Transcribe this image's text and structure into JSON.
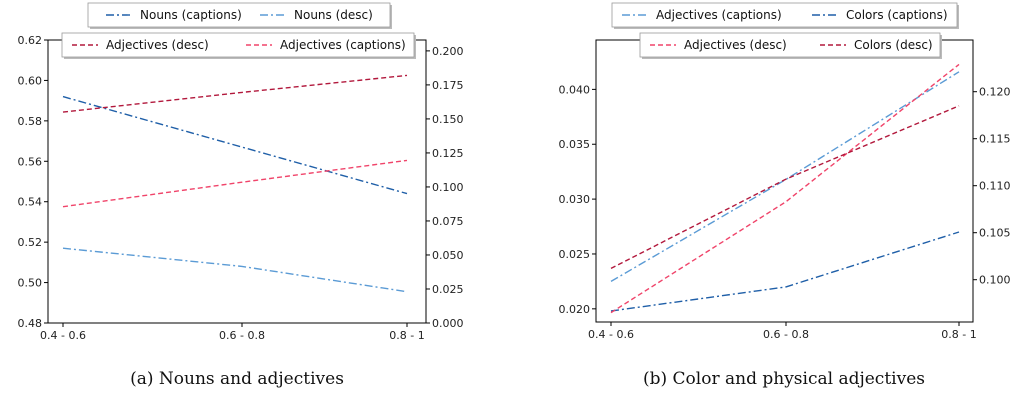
{
  "chart_data": [
    {
      "type": "line",
      "caption": "(a) Nouns and adjectives",
      "categories": [
        "0.4 - 0.6",
        "0.6 - 0.8",
        "0.8 - 1"
      ],
      "left_axis": {
        "ylim": [
          0.48,
          0.62
        ],
        "ticks": [
          0.48,
          0.5,
          0.52,
          0.54,
          0.56,
          0.58,
          0.6,
          0.62
        ],
        "tick_labels": [
          "0.48",
          "0.50",
          "0.52",
          "0.54",
          "0.56",
          "0.58",
          "0.60",
          "0.62"
        ]
      },
      "right_axis": {
        "ylim": [
          0.0,
          0.208
        ],
        "ticks": [
          0.0,
          0.025,
          0.05,
          0.075,
          0.1,
          0.125,
          0.15,
          0.175,
          0.2
        ],
        "tick_labels": [
          "0.000",
          "0.025",
          "0.050",
          "0.075",
          "0.100",
          "0.125",
          "0.150",
          "0.175",
          "0.200"
        ]
      },
      "series": [
        {
          "name": "Nouns (captions)",
          "axis": "left",
          "values": [
            0.592,
            0.567,
            0.544
          ],
          "color": "#1f5fa8",
          "dash": "dashdot"
        },
        {
          "name": "Nouns (desc)",
          "axis": "left",
          "values": [
            0.517,
            0.508,
            0.4955
          ],
          "color": "#5b9bd5",
          "dash": "dashdot"
        },
        {
          "name": "Adjectives (desc)",
          "axis": "right",
          "values": [
            0.155,
            0.1695,
            0.182
          ],
          "color": "#b2183c",
          "dash": "dashed"
        },
        {
          "name": "Adjectives (captions)",
          "axis": "right",
          "values": [
            0.0855,
            0.1035,
            0.1195
          ],
          "color": "#f0446a",
          "dash": "dashed"
        }
      ],
      "legends": [
        {
          "placement": "above",
          "entries": [
            "Nouns (captions)",
            "Nouns (desc)"
          ]
        },
        {
          "placement": "top",
          "entries": [
            "Adjectives (desc)",
            "Adjectives (captions)"
          ]
        }
      ]
    },
    {
      "type": "line",
      "caption": "(b) Color and physical adjectives",
      "categories": [
        "0.4 - 0.6",
        "0.6 - 0.8",
        "0.8 - 1"
      ],
      "left_axis": {
        "ylim": [
          0.0188,
          0.0445
        ],
        "ticks": [
          0.02,
          0.025,
          0.03,
          0.035,
          0.04
        ],
        "tick_labels": [
          "0.020",
          "0.025",
          "0.030",
          "0.035",
          "0.040"
        ]
      },
      "right_axis": {
        "ylim": [
          0.0955,
          0.1255
        ],
        "ticks": [
          0.1,
          0.105,
          0.11,
          0.115,
          0.12
        ],
        "tick_labels": [
          "0.100",
          "0.105",
          "0.110",
          "0.115",
          "0.120"
        ]
      },
      "series": [
        {
          "name": "Adjectives (captions)",
          "axis": "left",
          "values": [
            0.0225,
            0.0318,
            0.0416
          ],
          "color": "#5b9bd5",
          "dash": "dashdot"
        },
        {
          "name": "Colors (captions)",
          "axis": "left",
          "values": [
            0.0198,
            0.022,
            0.027
          ],
          "color": "#1f5fa8",
          "dash": "dashdot"
        },
        {
          "name": "Adjectives (desc)",
          "axis": "right",
          "values": [
            0.0965,
            0.1083,
            0.1229
          ],
          "color": "#f0446a",
          "dash": "dashed"
        },
        {
          "name": "Colors (desc)",
          "axis": "right",
          "values": [
            0.1012,
            0.1107,
            0.1185
          ],
          "color": "#b2183c",
          "dash": "dashed"
        }
      ],
      "legends": [
        {
          "placement": "above",
          "entries": [
            "Adjectives (captions)",
            "Colors (captions)"
          ]
        },
        {
          "placement": "top",
          "entries": [
            "Adjectives (desc)",
            "Colors (desc)"
          ]
        }
      ]
    }
  ]
}
